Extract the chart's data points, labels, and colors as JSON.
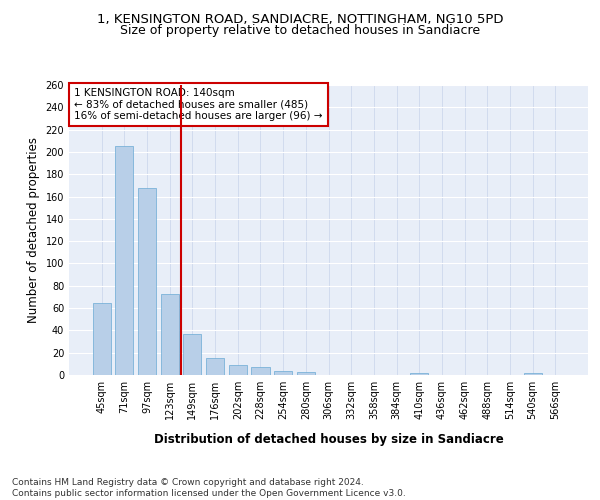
{
  "title": "1, KENSINGTON ROAD, SANDIACRE, NOTTINGHAM, NG10 5PD",
  "subtitle": "Size of property relative to detached houses in Sandiacre",
  "xlabel_bottom": "Distribution of detached houses by size in Sandiacre",
  "ylabel": "Number of detached properties",
  "categories": [
    "45sqm",
    "71sqm",
    "97sqm",
    "123sqm",
    "149sqm",
    "176sqm",
    "202sqm",
    "228sqm",
    "254sqm",
    "280sqm",
    "306sqm",
    "332sqm",
    "358sqm",
    "384sqm",
    "410sqm",
    "436sqm",
    "462sqm",
    "488sqm",
    "514sqm",
    "540sqm",
    "566sqm"
  ],
  "values": [
    65,
    205,
    168,
    73,
    37,
    15,
    9,
    7,
    4,
    3,
    0,
    0,
    0,
    0,
    2,
    0,
    0,
    0,
    0,
    2,
    0
  ],
  "bar_color": "#b8cfe8",
  "bar_edgecolor": "#6aaad4",
  "background_color": "#e8eef8",
  "grid_color": "#ffffff",
  "vline_x": 3.5,
  "vline_color": "#cc0000",
  "annotation_text": "1 KENSINGTON ROAD: 140sqm\n← 83% of detached houses are smaller (485)\n16% of semi-detached houses are larger (96) →",
  "annotation_box_color": "#cc0000",
  "ylim": [
    0,
    260
  ],
  "yticks": [
    0,
    20,
    40,
    60,
    80,
    100,
    120,
    140,
    160,
    180,
    200,
    220,
    240,
    260
  ],
  "footer": "Contains HM Land Registry data © Crown copyright and database right 2024.\nContains public sector information licensed under the Open Government Licence v3.0.",
  "title_fontsize": 9.5,
  "subtitle_fontsize": 9,
  "tick_fontsize": 7,
  "ylabel_fontsize": 8.5,
  "xlabel_fontsize": 8.5,
  "footer_fontsize": 6.5,
  "annotation_fontsize": 7.5
}
